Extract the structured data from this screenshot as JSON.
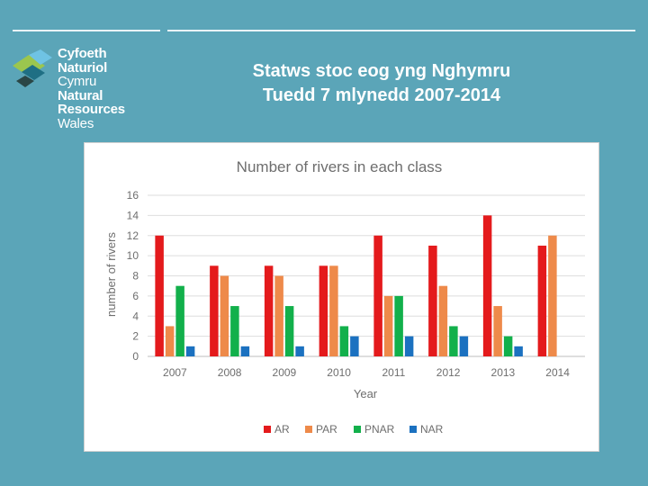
{
  "header": {
    "logo_lines": [
      "Cyfoeth",
      "Naturiol",
      "Cymru",
      "Natural",
      "Resources",
      "Wales"
    ],
    "title_line1": "Statws stoc eog yng Nghymru",
    "title_line2": "Tuedd 7 mlynedd 2007-2014"
  },
  "colors": {
    "background": "#5ba5b8",
    "AR": "#e41a1c",
    "PAR": "#ee8a4a",
    "PNAR": "#12b04b",
    "NAR": "#1b71c0"
  },
  "chart_data": {
    "type": "bar",
    "title": "Number of rivers in each class",
    "xlabel": "Year",
    "ylabel": "number of rivers",
    "ylim": [
      0,
      16
    ],
    "yticks": [
      0,
      2,
      4,
      6,
      8,
      10,
      12,
      14,
      16
    ],
    "grid": true,
    "legend_position": "bottom",
    "categories": [
      "2007",
      "2008",
      "2009",
      "2010",
      "2011",
      "2012",
      "2013",
      "2014"
    ],
    "series": [
      {
        "name": "AR",
        "color": "#e41a1c",
        "values": [
          12,
          9,
          9,
          9,
          12,
          11,
          14,
          11
        ]
      },
      {
        "name": "PAR",
        "color": "#ee8a4a",
        "values": [
          3,
          8,
          8,
          9,
          6,
          7,
          5,
          12
        ]
      },
      {
        "name": "PNAR",
        "color": "#12b04b",
        "values": [
          7,
          5,
          5,
          3,
          6,
          3,
          2,
          0
        ]
      },
      {
        "name": "NAR",
        "color": "#1b71c0",
        "values": [
          1,
          1,
          1,
          2,
          2,
          2,
          1,
          0
        ]
      }
    ]
  }
}
